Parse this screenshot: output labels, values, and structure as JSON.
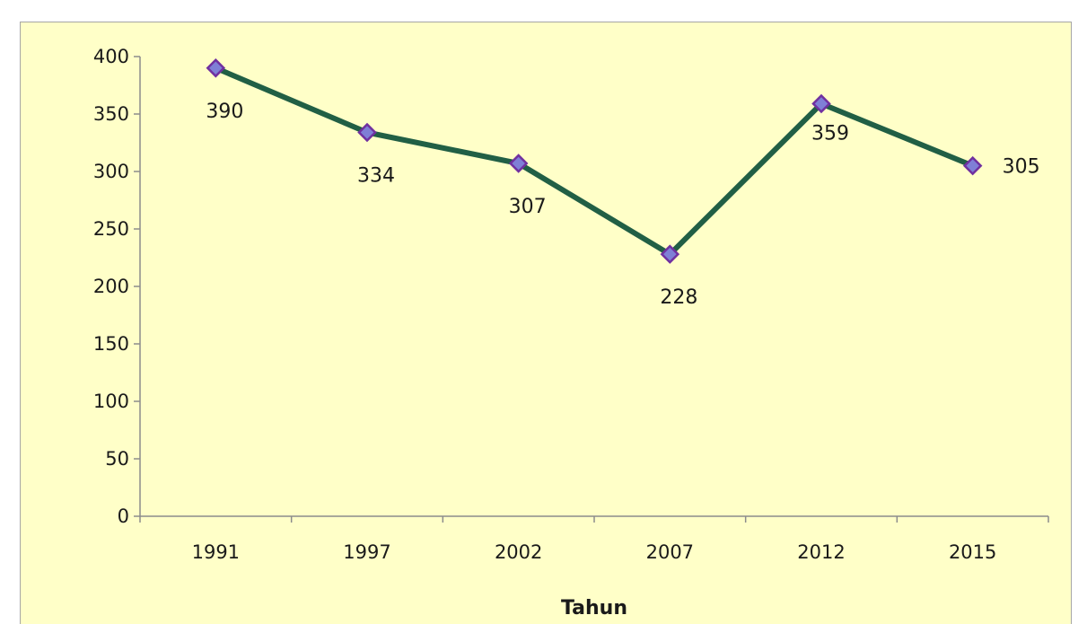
{
  "chart_data": {
    "type": "line",
    "title": "",
    "xlabel": "Tahun",
    "ylabel": "",
    "categories": [
      "1991",
      "1997",
      "2002",
      "2007",
      "2012",
      "2015"
    ],
    "series": [
      {
        "values": [
          390,
          334,
          307,
          228,
          359,
          305
        ],
        "color": "#215f45",
        "marker": "diamond",
        "marker_color": "#7f7fd6",
        "marker_edge": "#7030a0"
      }
    ],
    "ylim": [
      0,
      400
    ],
    "yticks": [
      0,
      50,
      100,
      150,
      200,
      250,
      300,
      350,
      400
    ],
    "grid": false,
    "legend": "none",
    "data_labels": [
      "390",
      "334",
      "307",
      "228",
      "359",
      "305"
    ],
    "background": "#ffffc8"
  }
}
